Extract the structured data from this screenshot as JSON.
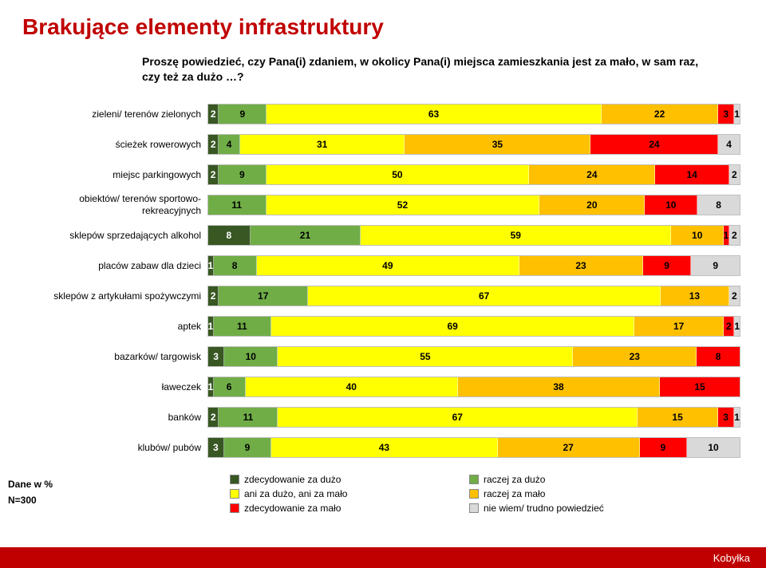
{
  "title": "Brakujące elementy infrastruktury",
  "subtitle": "Proszę powiedzieć, czy Pana(i) zdaniem,  w okolicy Pana(i) miejsca zamieszkania jest za mało, w sam raz, czy też za dużo …?",
  "colors": {
    "c1": "#385723",
    "c2": "#70ad47",
    "c3": "#ffff00",
    "c4": "#ffc000",
    "c5": "#ff0000",
    "c6": "#d9d9d9"
  },
  "legend": [
    {
      "label": "zdecydowanie za dużo",
      "color": "c1"
    },
    {
      "label": "raczej za dużo",
      "color": "c2"
    },
    {
      "label": "ani za dużo, ani za mało",
      "color": "c3"
    },
    {
      "label": "raczej za mało",
      "color": "c4"
    },
    {
      "label": "zdecydowanie za mało",
      "color": "c5"
    },
    {
      "label": "nie wiem/ trudno powiedzieć",
      "color": "c6"
    }
  ],
  "rows": [
    {
      "label": "zieleni/ terenów zielonych",
      "segs": [
        2,
        9,
        63,
        22,
        3,
        1
      ]
    },
    {
      "label": "ścieżek rowerowych",
      "segs": [
        2,
        4,
        31,
        35,
        24,
        4
      ]
    },
    {
      "label": "miejsc parkingowych",
      "segs": [
        2,
        9,
        50,
        24,
        14,
        2
      ]
    },
    {
      "label": "obiektów/ terenów sportowo- rekreacyjnych",
      "segs": [
        0,
        11,
        52,
        20,
        10,
        8
      ]
    },
    {
      "label": "sklepów sprzedających alkohol",
      "segs": [
        8,
        21,
        59,
        10,
        1,
        2
      ]
    },
    {
      "label": "placów zabaw dla dzieci",
      "segs": [
        1,
        8,
        49,
        23,
        9,
        9
      ]
    },
    {
      "label": "sklepów z artykułami spożywczymi",
      "segs": [
        2,
        17,
        67,
        13,
        0,
        2
      ]
    },
    {
      "label": "aptek",
      "segs": [
        1,
        11,
        69,
        17,
        2,
        1
      ]
    },
    {
      "label": "bazarków/ targowisk",
      "segs": [
        3,
        10,
        55,
        23,
        8,
        0
      ]
    },
    {
      "label": "ławeczek",
      "segs": [
        1,
        6,
        40,
        38,
        15,
        0
      ]
    },
    {
      "label": "banków",
      "segs": [
        2,
        11,
        67,
        15,
        3,
        1
      ]
    },
    {
      "label": "klubów/ pubów",
      "segs": [
        3,
        9,
        43,
        27,
        9,
        10
      ]
    }
  ],
  "footer": {
    "dane": "Dane w %",
    "n": "N=300",
    "brand": "Kobyłka"
  }
}
